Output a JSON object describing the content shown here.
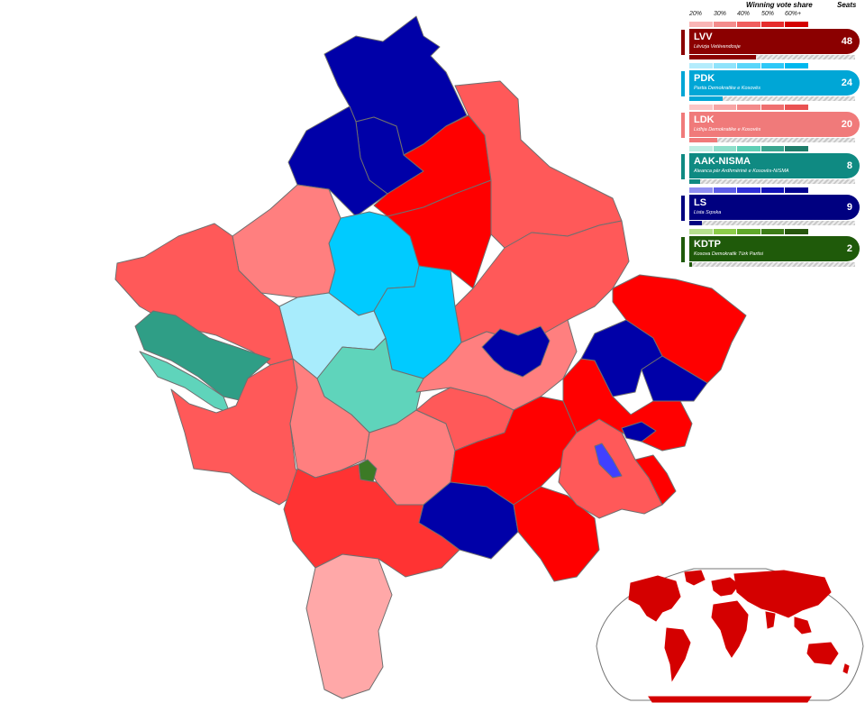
{
  "legend": {
    "title": "Winning vote share",
    "seats_label": "Seats",
    "ticks": [
      "20%",
      "30%",
      "40%",
      "50%",
      "60%+"
    ]
  },
  "parties": [
    {
      "abbr": "LVV",
      "name": "Lëvizja Vetëvendosje",
      "seats": "48",
      "seat_share": 0.4,
      "color": "#8b0000",
      "scale": [
        "#f9b5b5",
        "#f48c8c",
        "#f05e5e",
        "#e62d2d",
        "#d40000"
      ]
    },
    {
      "abbr": "PDK",
      "name": "Partia Demokratike e Kosovës",
      "seats": "24",
      "seat_share": 0.2,
      "color": "#00a6d6",
      "scale": [
        "#b4ecfc",
        "#8fe3fb",
        "#5ad6fa",
        "#2ec8f7",
        "#00b8ee"
      ]
    },
    {
      "abbr": "LDK",
      "name": "Lidhja Demokratike e Kosovës",
      "seats": "20",
      "seat_share": 0.167,
      "color": "#f07a7a",
      "scale": [
        "#fbc6c6",
        "#f7a5a5",
        "#f38a8a",
        "#ef7070",
        "#ea5353"
      ]
    },
    {
      "abbr": "AAK-NISMA",
      "name": "Aleanca për Ardhmërinë e Kosovës-NISMA",
      "seats": "8",
      "seat_share": 0.067,
      "color": "#0f8a82",
      "scale": [
        "#bfeee3",
        "#8fdfcb",
        "#5fcfb5",
        "#3aa58f",
        "#1f7d6a"
      ]
    },
    {
      "abbr": "LS",
      "name": "Lista Srpska",
      "seats": "9",
      "seat_share": 0.075,
      "color": "#000080",
      "scale": [
        "#8f8ff2",
        "#5c5ce8",
        "#2d2dd8",
        "#1010b8",
        "#000090"
      ]
    },
    {
      "abbr": "KDTP",
      "name": "Kosova Demokratik Türk Partisi",
      "seats": "2",
      "seat_share": 0.017,
      "color": "#1f5a0a",
      "scale": [
        "#b6e08e",
        "#8ccc4a",
        "#5fa82a",
        "#3d7d18",
        "#27560e"
      ]
    }
  ],
  "map": {
    "fills": {
      "lvv_strong": "#ff0000",
      "lvv_high": "#ff3333",
      "lvv_mid": "#ff5959",
      "ldk_mid": "#ff7f7f",
      "ldk_light": "#ffa8a8",
      "pdk_strong": "#00cbff",
      "pdk_light": "#a8ecfc",
      "aak_strong": "#2f9e86",
      "aak_light": "#5fd4bb",
      "ls_strong": "#0000a8",
      "ls_light": "#4040ff",
      "kdtp": "#3c7a26"
    }
  }
}
